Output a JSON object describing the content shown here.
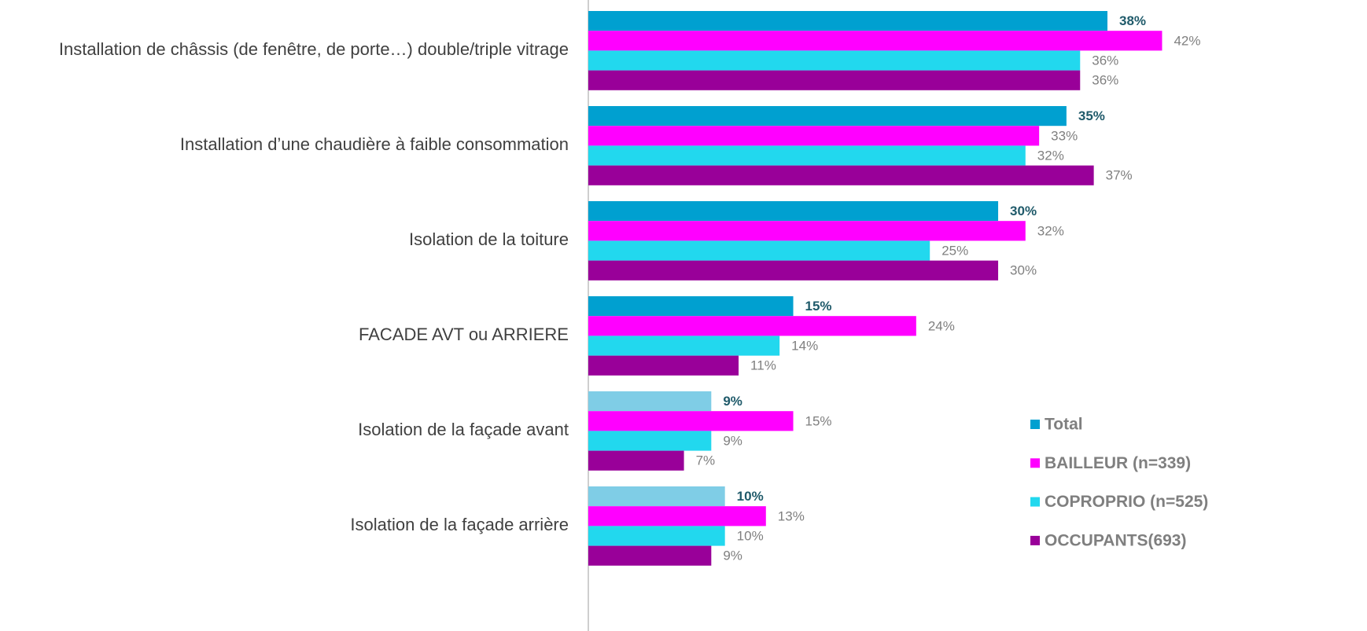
{
  "chart_data": {
    "type": "barh",
    "categories": [
      "Installation de châssis (de fenêtre, de porte…) double/triple vitrage",
      "Installation d’une chaudière à faible consommation",
      "Isolation de la toiture",
      "FACADE AVT ou ARRIERE",
      "Isolation de la façade avant",
      "Isolation de la façade arrière"
    ],
    "series": [
      {
        "name": "Total",
        "color": "#00a0d0",
        "colors": [
          "#00a0d0",
          "#00a0d0",
          "#00a0d0",
          "#00a0d0",
          "#7fcde6",
          "#7fcde6"
        ],
        "values": [
          38,
          35,
          30,
          15,
          9,
          10
        ],
        "value_labels": [
          "38%",
          "35%",
          "30%",
          "15%",
          "9%",
          "10%"
        ]
      },
      {
        "name": "BAILLEUR (n=339)",
        "color": "#ff00ff",
        "values": [
          42,
          33,
          32,
          24,
          15,
          13
        ],
        "value_labels": [
          "42%",
          "33%",
          "32%",
          "24%",
          "15%",
          "13%"
        ]
      },
      {
        "name": "COPROPRIO (n=525)",
        "color": "#22d8ee",
        "values": [
          36,
          32,
          25,
          14,
          9,
          10
        ],
        "value_labels": [
          "36%",
          "32%",
          "25%",
          "14%",
          "9%",
          "10%"
        ]
      },
      {
        "name": "OCCUPANTS(693)",
        "color": "#990099",
        "values": [
          36,
          37,
          30,
          11,
          7,
          9
        ],
        "value_labels": [
          "36%",
          "37%",
          "30%",
          "11%",
          "7%",
          "9%"
        ]
      }
    ],
    "xlim": [
      0,
      57
    ],
    "legend": "lower right"
  }
}
